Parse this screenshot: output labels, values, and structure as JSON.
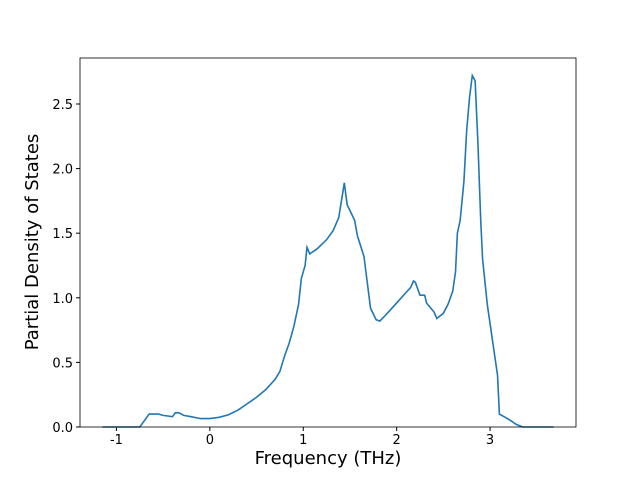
{
  "chart_data": {
    "type": "line",
    "xlabel": "Frequency (THz)",
    "ylabel": "Partial Density of States",
    "x": [
      -1.15,
      -0.75,
      -0.7,
      -0.65,
      -0.55,
      -0.5,
      -0.4,
      -0.37,
      -0.33,
      -0.28,
      -0.2,
      -0.1,
      0,
      0.1,
      0.2,
      0.3,
      0.4,
      0.5,
      0.6,
      0.7,
      0.75,
      0.8,
      0.85,
      0.9,
      0.95,
      0.98,
      1.02,
      1.04,
      1.07,
      1.15,
      1.25,
      1.32,
      1.38,
      1.42,
      1.44,
      1.47,
      1.55,
      1.58,
      1.65,
      1.68,
      1.72,
      1.78,
      1.82,
      1.9,
      2.0,
      2.1,
      2.15,
      2.18,
      2.2,
      2.25,
      2.3,
      2.32,
      2.4,
      2.43,
      2.5,
      2.55,
      2.6,
      2.63,
      2.65,
      2.68,
      2.72,
      2.75,
      2.78,
      2.81,
      2.84,
      2.87,
      2.9,
      2.92,
      2.97,
      3.03,
      3.08,
      3.1,
      3.15,
      3.22,
      3.28,
      3.35,
      3.68
    ],
    "series": [
      {
        "color": "#1f77b4",
        "values": [
          0,
          0,
          0.05,
          0.1,
          0.1,
          0.09,
          0.08,
          0.11,
          0.11,
          0.09,
          0.08,
          0.065,
          0.065,
          0.075,
          0.095,
          0.13,
          0.18,
          0.23,
          0.29,
          0.37,
          0.43,
          0.55,
          0.65,
          0.78,
          0.95,
          1.15,
          1.25,
          1.39,
          1.34,
          1.38,
          1.45,
          1.52,
          1.62,
          1.8,
          1.89,
          1.72,
          1.6,
          1.48,
          1.32,
          1.15,
          0.92,
          0.83,
          0.82,
          0.88,
          0.96,
          1.04,
          1.08,
          1.13,
          1.12,
          1.02,
          1.02,
          0.96,
          0.89,
          0.84,
          0.88,
          0.95,
          1.05,
          1.2,
          1.5,
          1.6,
          1.9,
          2.3,
          2.55,
          2.72,
          2.68,
          2.2,
          1.6,
          1.3,
          0.95,
          0.65,
          0.4,
          0.1,
          0.08,
          0.05,
          0.02,
          0,
          0
        ]
      }
    ],
    "xlim": [
      -1.39,
      3.92
    ],
    "ylim": [
      0,
      2.856
    ],
    "xticks": [
      -1,
      0,
      1,
      2,
      3
    ],
    "yticks": [
      {
        "value": 0,
        "label": "0.0"
      },
      0.5,
      {
        "value": 1,
        "label": "1.0"
      },
      1.5,
      {
        "value": 2,
        "label": "2.0"
      },
      2.5
    ]
  }
}
